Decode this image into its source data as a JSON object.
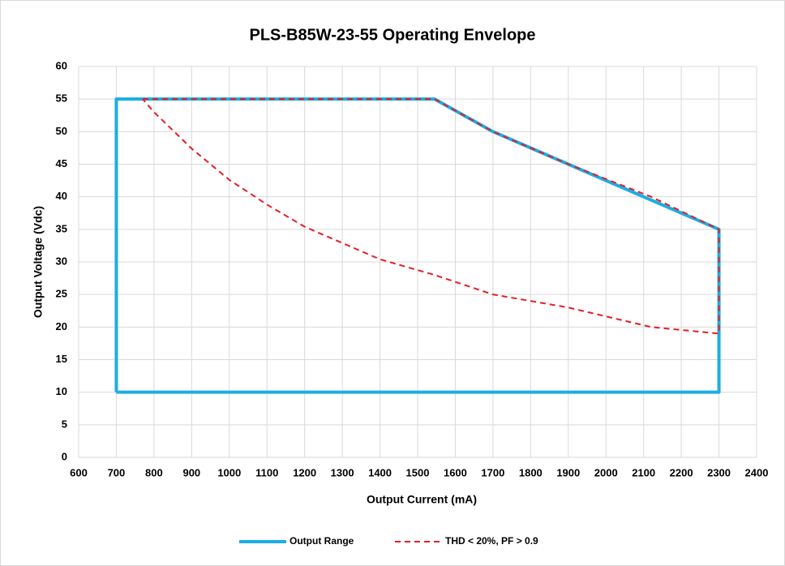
{
  "chart_data": {
    "type": "line",
    "title": "PLS-B85W-23-55 Operating Envelope",
    "x_label": "Output Current (mA)",
    "y_label": "Output Voltage (Vdc)",
    "xlim": [
      600,
      2400
    ],
    "xticks": [
      600,
      700,
      800,
      900,
      1000,
      1100,
      1200,
      1300,
      1400,
      1500,
      1600,
      1700,
      1800,
      1900,
      2000,
      2100,
      2200,
      2300,
      2400
    ],
    "ylim": [
      0,
      60
    ],
    "yticks": [
      0,
      5,
      10,
      15,
      20,
      25,
      30,
      35,
      40,
      45,
      50,
      55,
      60
    ],
    "grid": true,
    "legend": "bottom",
    "series": [
      {
        "name": "Output Range",
        "color": "#1cade4",
        "dashed": false,
        "x": [
          700,
          700,
          1545,
          1700,
          1900,
          2100,
          2300,
          2300,
          700
        ],
        "values": [
          10,
          55,
          55,
          50,
          45,
          40,
          35,
          10,
          10
        ]
      },
      {
        "name": "THD < 20%, PF > 0.9",
        "color": "#e41e26",
        "dashed": true,
        "x": [
          770,
          1545,
          1700,
          1900,
          2120,
          2300,
          2300,
          2120,
          1900,
          1700,
          1545,
          1400,
          1200,
          1100,
          1000,
          900,
          800,
          770
        ],
        "values": [
          55,
          55,
          50,
          45,
          40,
          35,
          19,
          20,
          23,
          25,
          28,
          30.4,
          35.4,
          38.8,
          42.6,
          47.4,
          53,
          55
        ]
      }
    ]
  }
}
